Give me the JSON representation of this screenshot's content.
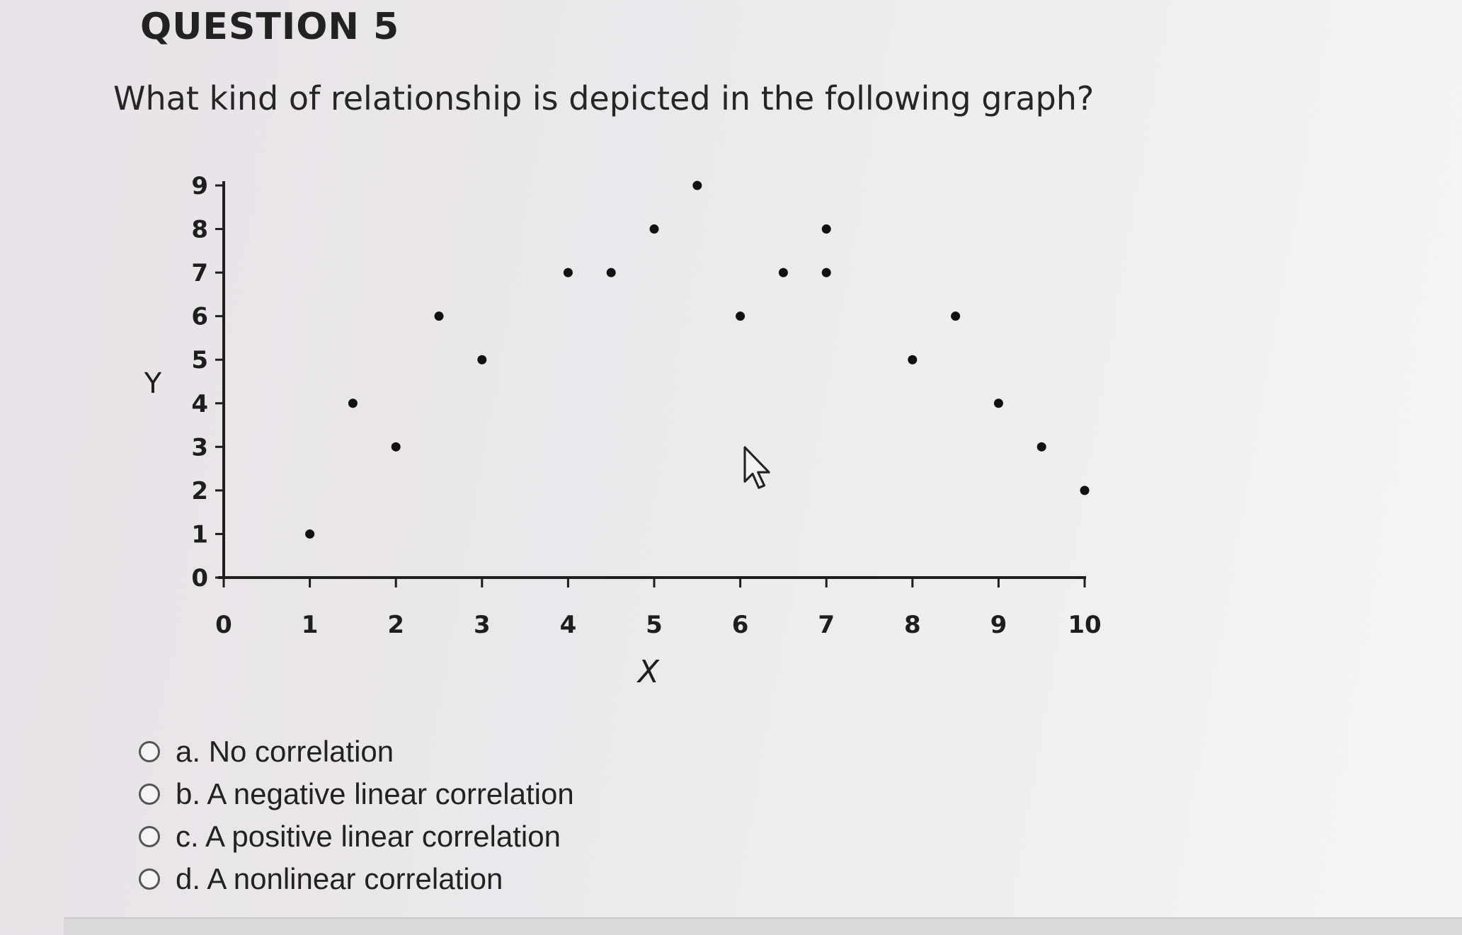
{
  "header": {
    "title": "QUESTION 5"
  },
  "question": {
    "text": "What kind of relationship is depicted in the following graph?"
  },
  "chart_data": {
    "type": "scatter",
    "title": "",
    "xlabel": "X",
    "ylabel": "Y",
    "xlim": [
      0,
      10
    ],
    "ylim": [
      0,
      9
    ],
    "xticks": [
      "0",
      "1",
      "2",
      "3",
      "4",
      "5",
      "6",
      "7",
      "8",
      "9",
      "10"
    ],
    "yticks": [
      "0",
      "1",
      "2",
      "3",
      "4",
      "5",
      "6",
      "7",
      "8",
      "9"
    ],
    "grid": false,
    "legend": "none",
    "series": [
      {
        "points": [
          {
            "x": 1.0,
            "y": 1
          },
          {
            "x": 1.5,
            "y": 4
          },
          {
            "x": 2.0,
            "y": 3
          },
          {
            "x": 2.5,
            "y": 6
          },
          {
            "x": 3.0,
            "y": 5
          },
          {
            "x": 4.0,
            "y": 7
          },
          {
            "x": 4.5,
            "y": 7
          },
          {
            "x": 5.0,
            "y": 8
          },
          {
            "x": 5.5,
            "y": 9
          },
          {
            "x": 6.0,
            "y": 6
          },
          {
            "x": 6.5,
            "y": 7
          },
          {
            "x": 7.0,
            "y": 7
          },
          {
            "x": 7.0,
            "y": 8
          },
          {
            "x": 8.0,
            "y": 5
          },
          {
            "x": 8.5,
            "y": 6
          },
          {
            "x": 9.0,
            "y": 4
          },
          {
            "x": 9.5,
            "y": 3
          },
          {
            "x": 10.0,
            "y": 2
          }
        ]
      }
    ],
    "colors": {
      "axis": "#1e1e1e",
      "point": "#111111"
    }
  },
  "answers": {
    "options": [
      {
        "label": "a. No correlation"
      },
      {
        "label": "b. A negative linear correlation"
      },
      {
        "label": "c. A positive linear correlation"
      },
      {
        "label": "d. A nonlinear correlation"
      }
    ]
  }
}
